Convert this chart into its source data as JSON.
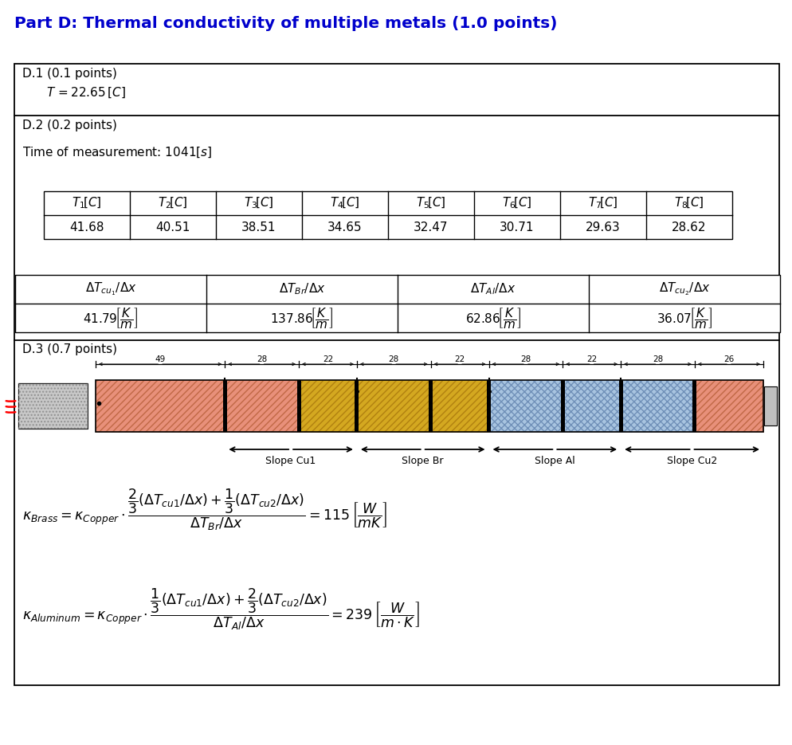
{
  "title": "Part D: Thermal conductivity of multiple metals (1.0 points)",
  "title_color": "#0000CC",
  "bg_color": "#ffffff",
  "d1_label": "D.1 (0.1 points)",
  "d2_label": "D.2 (0.2 points)",
  "time_text": "Time of measurement: 1041",
  "temp_values": [
    "41.68",
    "40.51",
    "38.51",
    "34.65",
    "32.47",
    "30.71",
    "29.63",
    "28.62"
  ],
  "slope_values": [
    "41.79",
    "137.86",
    "62.86",
    "36.07"
  ],
  "d3_label": "D.3 (0.7 points)",
  "measurements": [
    49,
    28,
    22,
    28,
    22,
    28,
    22,
    28,
    26
  ],
  "slope_labels": [
    "Slope Cu1",
    "Slope Br",
    "Slope Al",
    "Slope Cu2"
  ],
  "copper_color": "#E8907A",
  "brass_color": "#D4A820",
  "al_color": "#A8C4E0",
  "copper_hatch_color": "#C06845",
  "brass_hatch_color": "#B08010",
  "al_hatch_color": "#7090B8"
}
